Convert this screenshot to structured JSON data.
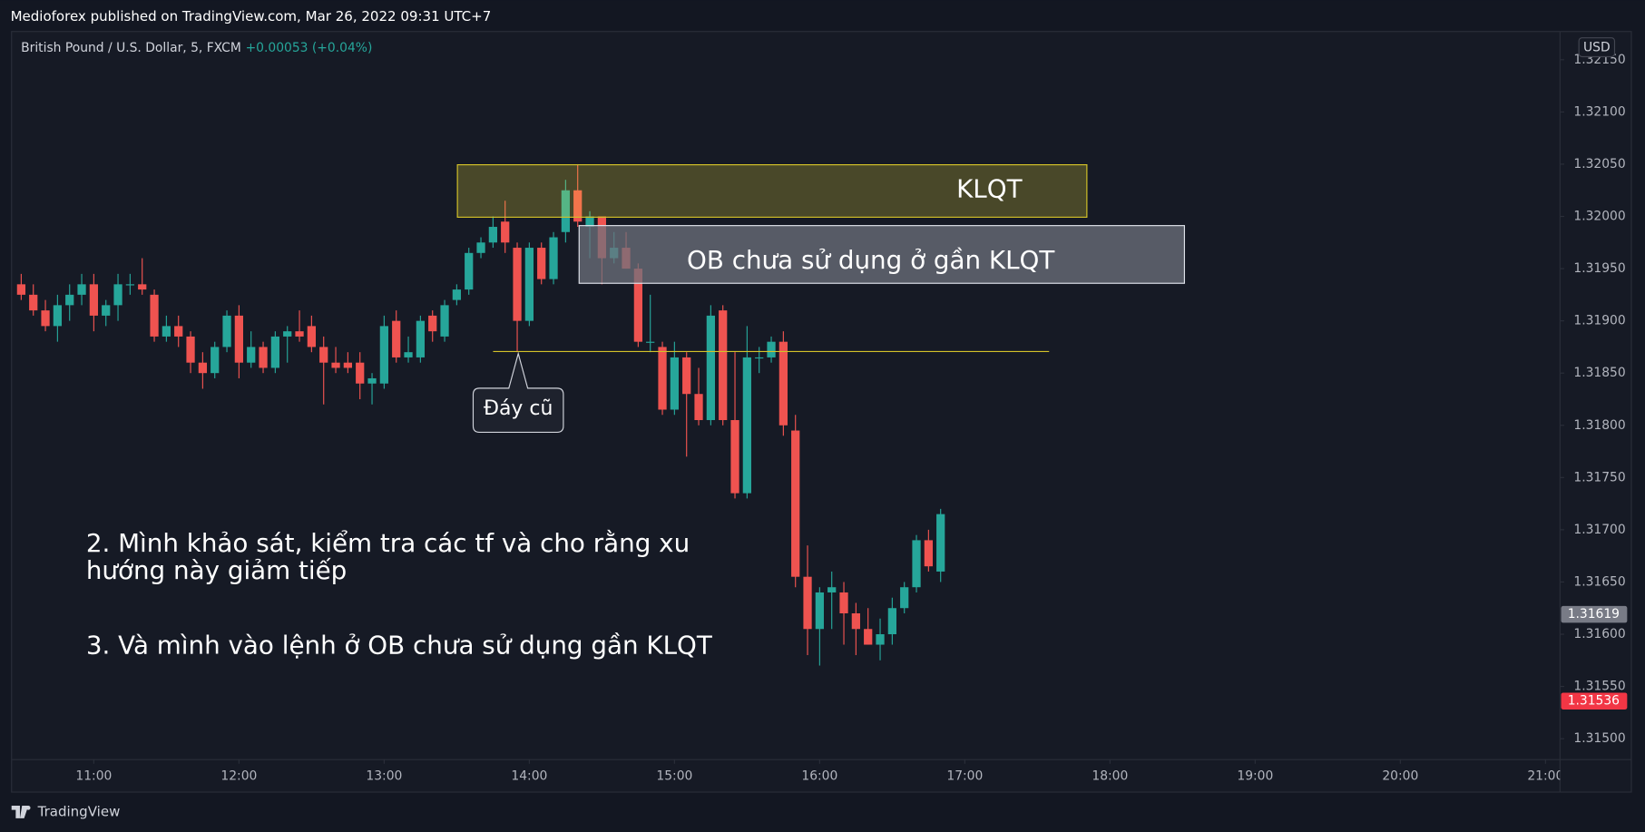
{
  "header": {
    "publisher": "Medioforex published on TradingView.com, Mar 26, 2022 09:31 UTC+7",
    "currency": "USD",
    "footer": "TradingView"
  },
  "chart_data": {
    "type": "candlestick",
    "title": "British Pound / U.S. Dollar, 5, FXCM",
    "subtitle": "+0.00053 (+0.04%)",
    "up_color": "#26a69a",
    "down_color": "#ef5350",
    "grid": false,
    "x": [
      "10:30",
      "10:35",
      "10:40",
      "10:45",
      "10:50",
      "10:55",
      "11:00",
      "11:05",
      "11:10",
      "11:15",
      "11:20",
      "11:25",
      "11:30",
      "11:35",
      "11:40",
      "11:45",
      "11:50",
      "11:55",
      "12:00",
      "12:05",
      "12:10",
      "12:15",
      "12:20",
      "12:25",
      "12:30",
      "12:35",
      "12:40",
      "12:45",
      "12:50",
      "12:55",
      "13:00",
      "13:05",
      "13:10",
      "13:15",
      "13:20",
      "13:25",
      "13:30",
      "13:35",
      "13:40",
      "13:45",
      "13:50",
      "13:55",
      "14:00",
      "14:05",
      "14:10",
      "14:15",
      "14:20",
      "14:25",
      "14:30",
      "14:35",
      "14:40",
      "14:45",
      "14:50",
      "14:55",
      "15:00",
      "15:05",
      "15:10",
      "15:15",
      "15:20",
      "15:25",
      "15:30",
      "15:35",
      "15:40",
      "15:45",
      "15:50",
      "15:55",
      "16:00",
      "16:05",
      "16:10",
      "16:15",
      "16:20",
      "16:25",
      "16:30",
      "16:35",
      "16:40",
      "16:45",
      "16:50"
    ],
    "open": [
      1.31935,
      1.31925,
      1.3191,
      1.31895,
      1.31915,
      1.31925,
      1.31935,
      1.31905,
      1.31915,
      1.31935,
      1.31935,
      1.31925,
      1.31885,
      1.31895,
      1.31885,
      1.3186,
      1.3185,
      1.31875,
      1.31905,
      1.3186,
      1.31875,
      1.31855,
      1.31885,
      1.3189,
      1.31895,
      1.31875,
      1.3186,
      1.3186,
      1.3186,
      1.3184,
      1.3184,
      1.319,
      1.31865,
      1.31865,
      1.31905,
      1.31885,
      1.3192,
      1.3193,
      1.31965,
      1.31975,
      1.31995,
      1.3197,
      1.319,
      1.3197,
      1.3194,
      1.31985,
      1.32025,
      1.3199,
      1.32,
      1.3196,
      1.3197,
      1.3195,
      1.3188,
      1.31875,
      1.31815,
      1.31865,
      1.3183,
      1.31805,
      1.3191,
      1.31805,
      1.31735,
      1.31865,
      1.31865,
      1.3188,
      1.31795,
      1.31655,
      1.31605,
      1.3164,
      1.3164,
      1.3162,
      1.31605,
      1.3159,
      1.316,
      1.31625,
      1.31645,
      1.3169,
      1.3166
    ],
    "high": [
      1.31945,
      1.31935,
      1.3192,
      1.31925,
      1.31935,
      1.31945,
      1.31945,
      1.3192,
      1.31945,
      1.31945,
      1.3196,
      1.3193,
      1.31905,
      1.31905,
      1.3189,
      1.3187,
      1.3188,
      1.3191,
      1.31915,
      1.3189,
      1.3188,
      1.3189,
      1.31895,
      1.3191,
      1.31905,
      1.31885,
      1.31875,
      1.3187,
      1.3187,
      1.3185,
      1.31905,
      1.3191,
      1.31885,
      1.31905,
      1.3191,
      1.3192,
      1.31935,
      1.3197,
      1.3198,
      1.32,
      1.32015,
      1.31975,
      1.31975,
      1.31975,
      1.31985,
      1.32035,
      1.3205,
      1.32005,
      1.32,
      1.31985,
      1.31985,
      1.31955,
      1.31925,
      1.3188,
      1.3188,
      1.3187,
      1.31855,
      1.31915,
      1.31915,
      1.3187,
      1.31895,
      1.31875,
      1.31885,
      1.3189,
      1.3181,
      1.31685,
      1.31645,
      1.3166,
      1.3165,
      1.3163,
      1.31625,
      1.31615,
      1.31635,
      1.3165,
      1.31695,
      1.317,
      1.3172
    ],
    "low": [
      1.3192,
      1.31905,
      1.3189,
      1.3188,
      1.319,
      1.31915,
      1.3189,
      1.31895,
      1.319,
      1.31925,
      1.31925,
      1.3188,
      1.3188,
      1.31875,
      1.3185,
      1.31835,
      1.31845,
      1.3187,
      1.31845,
      1.31855,
      1.3185,
      1.3185,
      1.3186,
      1.3188,
      1.3187,
      1.3182,
      1.3185,
      1.3185,
      1.31825,
      1.3182,
      1.31835,
      1.3186,
      1.3186,
      1.3186,
      1.3188,
      1.3188,
      1.31915,
      1.31925,
      1.3196,
      1.3197,
      1.31965,
      1.3187,
      1.31895,
      1.31935,
      1.31935,
      1.31975,
      1.3199,
      1.3196,
      1.31935,
      1.31955,
      1.3195,
      1.31875,
      1.3187,
      1.3181,
      1.3181,
      1.3177,
      1.318,
      1.318,
      1.318,
      1.3173,
      1.3173,
      1.3185,
      1.3186,
      1.3179,
      1.31645,
      1.3158,
      1.3157,
      1.31605,
      1.3159,
      1.3158,
      1.3159,
      1.31575,
      1.3159,
      1.3162,
      1.3164,
      1.3166,
      1.3165
    ],
    "close": [
      1.31925,
      1.3191,
      1.31895,
      1.31915,
      1.31925,
      1.31935,
      1.31905,
      1.31915,
      1.31935,
      1.31935,
      1.3193,
      1.31885,
      1.31895,
      1.31885,
      1.3186,
      1.3185,
      1.31875,
      1.31905,
      1.3186,
      1.31875,
      1.31855,
      1.31885,
      1.3189,
      1.31885,
      1.31875,
      1.3186,
      1.31855,
      1.31855,
      1.3184,
      1.31845,
      1.31895,
      1.31865,
      1.3187,
      1.319,
      1.3189,
      1.31915,
      1.3193,
      1.31965,
      1.31975,
      1.3199,
      1.31975,
      1.319,
      1.3197,
      1.3194,
      1.3198,
      1.32025,
      1.31995,
      1.32,
      1.3196,
      1.3197,
      1.3195,
      1.3188,
      1.3188,
      1.31815,
      1.31865,
      1.3183,
      1.31805,
      1.31905,
      1.31805,
      1.31735,
      1.31865,
      1.31865,
      1.3188,
      1.318,
      1.31655,
      1.31605,
      1.3164,
      1.31645,
      1.3162,
      1.31605,
      1.3159,
      1.316,
      1.31625,
      1.31645,
      1.3169,
      1.31665,
      1.31715
    ],
    "xlim": [
      "10:26",
      "21:06"
    ],
    "xticks": [
      "11:00",
      "12:00",
      "13:00",
      "14:00",
      "15:00",
      "16:00",
      "17:00",
      "18:00",
      "19:00",
      "20:00",
      "21:00"
    ],
    "ylim": [
      1.3148,
      1.32177
    ],
    "yticks": [
      {
        "value": 1.315,
        "label": "1.31500"
      },
      {
        "value": 1.3155,
        "label": "1.31550"
      },
      {
        "value": 1.316,
        "label": "1.31600"
      },
      {
        "value": 1.3165,
        "label": "1.31650"
      },
      {
        "value": 1.317,
        "label": "1.31700"
      },
      {
        "value": 1.3175,
        "label": "1.31750"
      },
      {
        "value": 1.318,
        "label": "1.31800"
      },
      {
        "value": 1.3185,
        "label": "1.31850"
      },
      {
        "value": 1.319,
        "label": "1.31900"
      },
      {
        "value": 1.3195,
        "label": "1.31950"
      },
      {
        "value": 1.32,
        "label": "1.32000"
      },
      {
        "value": 1.3205,
        "label": "1.32050"
      },
      {
        "value": 1.321,
        "label": "1.32100"
      },
      {
        "value": 1.3215,
        "label": "1.32150"
      }
    ],
    "price_tags": [
      {
        "value": 1.31619,
        "color": "#787b86"
      },
      {
        "value": 1.31536,
        "color": "#f23645"
      }
    ],
    "annotations": {
      "zone": "KLQT",
      "order_block": "OB chưa sử dụng ở gần KLQT",
      "callout": "Đáy cũ",
      "note_2": [
        "2. Mình khảo sát, kiểm tra các tf và cho rằng xu",
        "hướng này giảm tiếp"
      ],
      "note_3": "3. Và mình vào lệnh ở OB chưa sử dụng gần KLQT"
    }
  }
}
